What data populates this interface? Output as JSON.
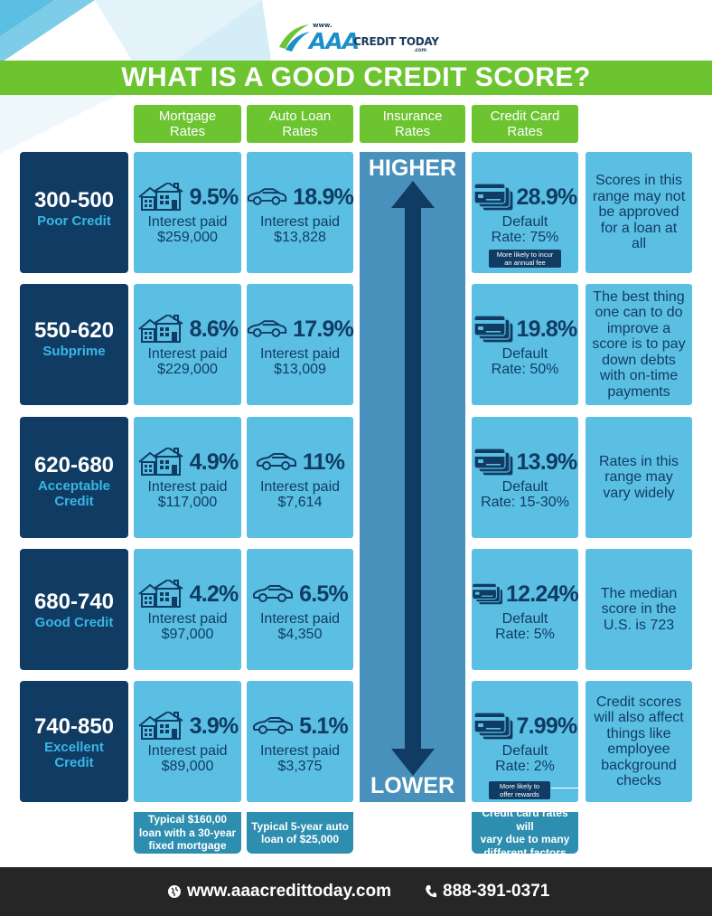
{
  "brand": {
    "www": "www.",
    "aaa": "AAA",
    "name": "CREDIT TODAY",
    "dotcom": ".com"
  },
  "title": "WHAT IS A GOOD CREDIT SCORE?",
  "columns": [
    "Mortgage\nRates",
    "Auto Loan\nRates",
    "Insurance\nRates",
    "Credit Card\nRates"
  ],
  "insurance": {
    "higher": "HIGHER",
    "lower": "LOWER"
  },
  "rows": [
    {
      "range": "300-500",
      "label": "Poor Credit",
      "mortgage": {
        "rate": "9.5%",
        "l1": "Interest paid",
        "l2": "$259,000"
      },
      "auto": {
        "rate": "18.9%",
        "l1": "Interest paid",
        "l2": "$13,828"
      },
      "card": {
        "rate": "28.9%",
        "l1": "Default",
        "l2": "Rate: 75%"
      },
      "note": "Scores in this\nrange may not\nbe approved\nfor a loan at\nall"
    },
    {
      "range": "550-620",
      "label": "Subprime",
      "mortgage": {
        "rate": "8.6%",
        "l1": "Interest paid",
        "l2": "$229,000"
      },
      "auto": {
        "rate": "17.9%",
        "l1": "Interest paid",
        "l2": "$13,009"
      },
      "card": {
        "rate": "19.8%",
        "l1": "Default",
        "l2": "Rate: 50%"
      },
      "note": "The best thing\none can to do\nimprove a\nscore is to pay\ndown debts\nwith on-time\npayments"
    },
    {
      "range": "620-680",
      "label": "Acceptable\nCredit",
      "mortgage": {
        "rate": "4.9%",
        "l1": "Interest paid",
        "l2": "$117,000"
      },
      "auto": {
        "rate": "11%",
        "l1": "Interest paid",
        "l2": "$7,614"
      },
      "card": {
        "rate": "13.9%",
        "l1": "Default",
        "l2": "Rate: 15-30%"
      },
      "note": "Rates in this\nrange may\nvary widely"
    },
    {
      "range": "680-740",
      "label": "Good Credit",
      "mortgage": {
        "rate": "4.2%",
        "l1": "Interest paid",
        "l2": "$97,000"
      },
      "auto": {
        "rate": "6.5%",
        "l1": "Interest paid",
        "l2": "$4,350"
      },
      "card": {
        "rate": "12.24%",
        "l1": "Default",
        "l2": "Rate: 5%"
      },
      "note": "The median\nscore in the\nU.S. is 723"
    },
    {
      "range": "740-850",
      "label": "Excellent\nCredit",
      "mortgage": {
        "rate": "3.9%",
        "l1": "Interest paid",
        "l2": "$89,000"
      },
      "auto": {
        "rate": "5.1%",
        "l1": "Interest paid",
        "l2": "$3,375"
      },
      "card": {
        "rate": "7.99%",
        "l1": "Default",
        "l2": "Rate: 2%"
      },
      "note": "Credit scores\nwill also affect\nthings like\nemployee\nbackground\nchecks"
    }
  ],
  "tags": {
    "fee": "More likely to incur\nan annual fee",
    "rewards": "More likely to\noffer rewards"
  },
  "footnotes": {
    "mortgage": "Typical $160,00\nloan with a 30-year\nfixed mortgage",
    "auto": "Typical 5-year auto\nloan of $25,000",
    "card": "Credit card rates will\nvary due to many\ndifferent factors"
  },
  "footer": {
    "website": "www.aaacredittoday.com",
    "phone": "888-391-0371"
  },
  "colors": {
    "green": "#6cc430",
    "navy": "#103c64",
    "cell": "#5bbfe3",
    "accent": "#3ab6e6",
    "column": "#4891bc"
  }
}
